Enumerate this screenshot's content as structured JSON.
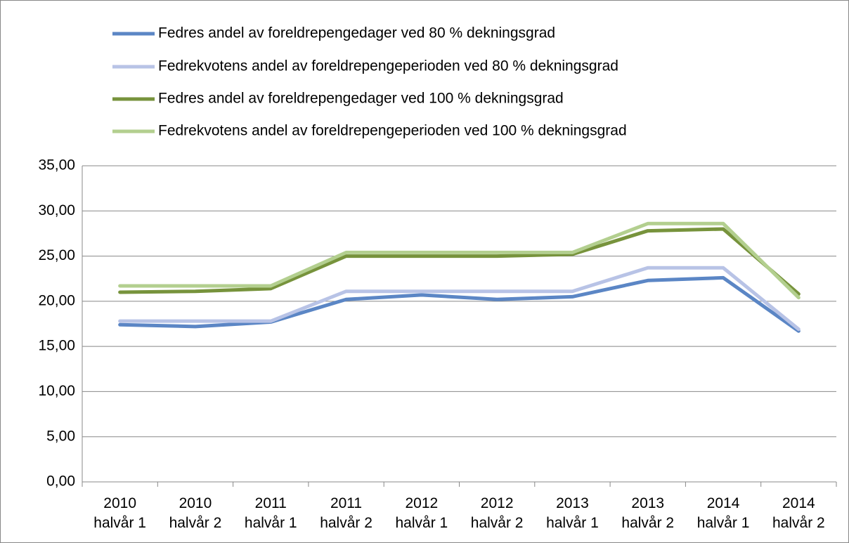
{
  "chart_data": {
    "type": "line",
    "categories": [
      "2010 halvår 1",
      "2010 halvår 2",
      "2011 halvår 1",
      "2011 halvår 2",
      "2012 halvår 1",
      "2012 halvår 2",
      "2013 halvår 1",
      "2013 halvår 2",
      "2014 halvår 1",
      "2014 halvår 2"
    ],
    "series": [
      {
        "name": "Fedres andel av foreldrepengedager ved 80 % dekningsgrad",
        "color": "#5b86c5",
        "values": [
          17.4,
          17.2,
          17.7,
          20.2,
          20.7,
          20.2,
          20.5,
          22.3,
          22.6,
          16.7
        ]
      },
      {
        "name": "Fedrekvotens andel av foreldrepengeperioden ved 80 % dekningsgrad",
        "color": "#b8c3e6",
        "values": [
          17.8,
          17.8,
          17.8,
          21.1,
          21.1,
          21.1,
          21.1,
          23.7,
          23.7,
          16.9
        ]
      },
      {
        "name": "Fedres andel av foreldrepengedager ved 100 % dekningsgrad",
        "color": "#77933c",
        "values": [
          21.0,
          21.1,
          21.4,
          25.0,
          25.0,
          25.0,
          25.2,
          27.8,
          28.0,
          20.8
        ]
      },
      {
        "name": "Fedrekvotens andel av foreldrepengeperioden ved 100 % dekningsgrad",
        "color": "#b3cf8f",
        "values": [
          21.7,
          21.7,
          21.7,
          25.4,
          25.4,
          25.4,
          25.4,
          28.6,
          28.6,
          20.4
        ]
      }
    ],
    "ylim": [
      0,
      35
    ],
    "yticks": [
      {
        "value": 0,
        "label": "0,00"
      },
      {
        "value": 5,
        "label": "5,00"
      },
      {
        "value": 10,
        "label": "10,00"
      },
      {
        "value": 15,
        "label": "15,00"
      },
      {
        "value": 20,
        "label": "20,00"
      },
      {
        "value": 25,
        "label": "25,00"
      },
      {
        "value": 30,
        "label": "30,00"
      },
      {
        "value": 35,
        "label": "35,00"
      }
    ],
    "grid": true,
    "legend": "top"
  }
}
